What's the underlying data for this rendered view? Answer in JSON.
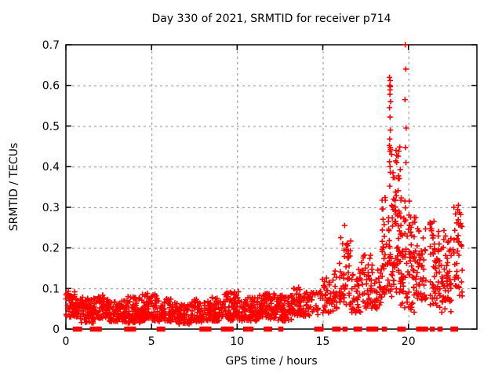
{
  "chart_data": {
    "type": "scatter",
    "title": "Day 330 of 2021, SRMTID for receiver p714",
    "xlabel": "GPS time / hours",
    "ylabel": "SRMTID / TECUs",
    "xlim": [
      0,
      24
    ],
    "ylim": [
      0,
      0.7
    ],
    "xticks": [
      0,
      5,
      10,
      15,
      20
    ],
    "xtick_labels": [
      "0",
      "5",
      "10",
      "15",
      "20"
    ],
    "yticks": [
      0,
      0.1,
      0.2,
      0.3,
      0.4,
      0.5,
      0.6,
      0.7
    ],
    "ytick_labels": [
      "0",
      "0.1",
      "0.2",
      "0.3",
      "0.4",
      "0.5",
      "0.6",
      "0.7"
    ],
    "grid": true,
    "legend": "none",
    "marker": "plus",
    "zero_marker": "filled-square",
    "colors": {
      "marker": "#ff0000",
      "grid": "#8f8f8f",
      "axis": "#000000",
      "background": "#ffffff"
    },
    "seed": 330,
    "clusters_format": [
      "x_start_hour",
      "x_end_hour",
      "y_min_tecu",
      "y_max_tecu",
      "point_count",
      "low_bias_exponent"
    ],
    "clusters": [
      [
        0.0,
        0.6,
        0.03,
        0.095,
        55,
        1.2
      ],
      [
        0.6,
        0.85,
        0.03,
        0.075,
        18,
        1.3
      ],
      [
        0.85,
        1.65,
        0.015,
        0.08,
        75,
        1.3
      ],
      [
        1.65,
        2.45,
        0.025,
        0.085,
        70,
        1.3
      ],
      [
        2.45,
        3.45,
        0.018,
        0.07,
        80,
        1.3
      ],
      [
        3.45,
        4.45,
        0.015,
        0.08,
        80,
        1.3
      ],
      [
        4.45,
        5.45,
        0.02,
        0.088,
        90,
        1.3
      ],
      [
        5.45,
        6.45,
        0.018,
        0.075,
        80,
        1.3
      ],
      [
        6.45,
        7.25,
        0.012,
        0.065,
        60,
        1.3
      ],
      [
        7.25,
        8.25,
        0.015,
        0.075,
        70,
        1.3
      ],
      [
        8.25,
        9.25,
        0.02,
        0.08,
        80,
        1.3
      ],
      [
        9.25,
        10.25,
        0.02,
        0.092,
        85,
        1.3
      ],
      [
        10.25,
        11.25,
        0.02,
        0.08,
        80,
        1.3
      ],
      [
        11.25,
        12.25,
        0.025,
        0.09,
        80,
        1.3
      ],
      [
        12.25,
        13.25,
        0.02,
        0.085,
        80,
        1.3
      ],
      [
        13.25,
        14.25,
        0.03,
        0.105,
        70,
        1.2
      ],
      [
        14.25,
        14.95,
        0.035,
        0.095,
        25,
        1.2
      ],
      [
        14.95,
        15.65,
        0.04,
        0.13,
        40,
        1.2
      ],
      [
        15.65,
        16.25,
        0.05,
        0.21,
        35,
        1.5
      ],
      [
        16.25,
        16.65,
        0.06,
        0.22,
        30,
        1.4
      ],
      [
        16.65,
        17.25,
        0.04,
        0.15,
        35,
        1.3
      ],
      [
        17.25,
        17.85,
        0.05,
        0.19,
        40,
        1.4
      ],
      [
        17.85,
        18.45,
        0.05,
        0.16,
        35,
        1.3
      ],
      [
        18.45,
        19.05,
        0.08,
        0.33,
        55,
        1.4
      ],
      [
        19.05,
        19.55,
        0.09,
        0.45,
        65,
        1.5
      ],
      [
        19.55,
        20.05,
        0.05,
        0.33,
        50,
        1.3
      ],
      [
        20.05,
        20.45,
        0.03,
        0.28,
        40,
        1.3
      ],
      [
        20.45,
        21.05,
        0.07,
        0.25,
        45,
        1.2
      ],
      [
        21.25,
        21.85,
        0.05,
        0.27,
        60,
        1.2
      ],
      [
        21.9,
        22.5,
        0.04,
        0.245,
        55,
        1.2
      ],
      [
        22.6,
        23.15,
        0.08,
        0.3,
        40,
        1.2
      ]
    ],
    "highlight_points": [
      [
        18.9,
        0.62
      ],
      [
        18.94,
        0.612
      ],
      [
        18.91,
        0.6
      ],
      [
        18.95,
        0.597
      ],
      [
        18.93,
        0.589
      ],
      [
        18.92,
        0.578
      ],
      [
        18.96,
        0.56
      ],
      [
        18.9,
        0.545
      ],
      [
        18.93,
        0.522
      ],
      [
        18.95,
        0.49
      ],
      [
        18.91,
        0.468
      ],
      [
        18.89,
        0.452
      ],
      [
        18.94,
        0.447
      ],
      [
        18.96,
        0.442
      ],
      [
        18.92,
        0.438
      ],
      [
        19.02,
        0.43
      ],
      [
        18.9,
        0.412
      ],
      [
        18.93,
        0.4
      ],
      [
        18.95,
        0.386
      ],
      [
        18.91,
        0.352
      ],
      [
        19.82,
        0.7
      ],
      [
        19.85,
        0.64
      ],
      [
        19.8,
        0.565
      ],
      [
        19.87,
        0.495
      ],
      [
        19.83,
        0.447
      ],
      [
        19.86,
        0.41
      ],
      [
        19.28,
        0.44
      ],
      [
        19.32,
        0.428
      ],
      [
        19.26,
        0.414
      ],
      [
        16.28,
        0.255
      ],
      [
        16.05,
        0.225
      ],
      [
        20.05,
        0.315
      ],
      [
        22.92,
        0.305
      ]
    ],
    "zero_marker_hours": [
      0.55,
      0.8,
      1.55,
      1.8,
      1.95,
      3.55,
      3.75,
      3.95,
      5.45,
      5.65,
      7.95,
      8.15,
      8.35,
      9.2,
      9.4,
      9.65,
      10.5,
      10.8,
      11.7,
      11.9,
      12.55,
      14.65,
      14.9,
      15.7,
      15.9,
      16.3,
      16.95,
      17.15,
      17.7,
      17.9,
      18.1,
      18.6,
      19.5,
      19.7,
      20.6,
      20.8,
      21.0,
      21.4,
      21.85,
      22.6,
      22.75
    ]
  }
}
